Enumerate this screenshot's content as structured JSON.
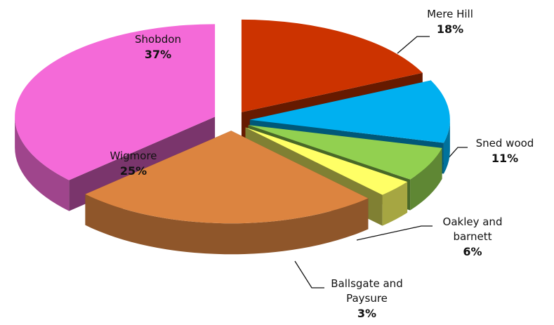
{
  "chart_data": {
    "type": "pie3d",
    "categories": [
      "Mere Hill",
      "Sned wood",
      "Oakley and barnett",
      "Ballsgate and Paysure",
      "Wigmore",
      "Shobdon"
    ],
    "values": [
      18,
      11,
      6,
      3,
      25,
      37
    ],
    "value_labels": [
      "18%",
      "11%",
      "6%",
      "3%",
      "25%",
      "37%"
    ],
    "colors": [
      "#cc3300",
      "#00b0f0",
      "#92d050",
      "#ffff66",
      "#dc8440",
      "#f46ad8"
    ]
  }
}
